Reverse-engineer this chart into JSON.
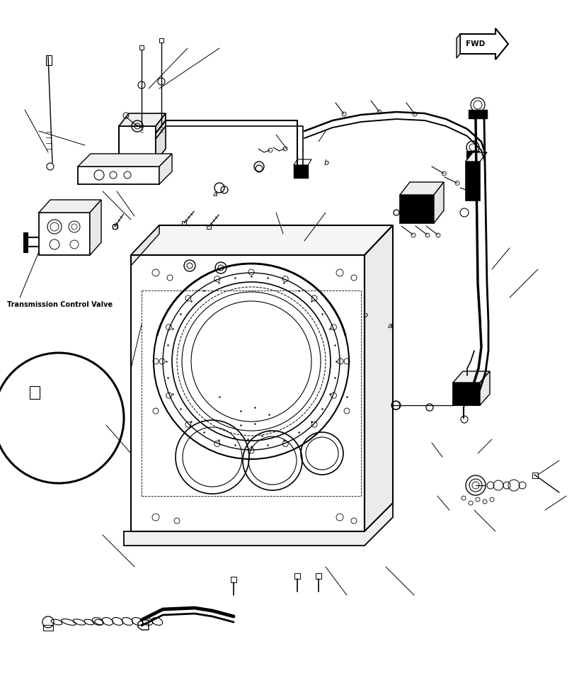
{
  "background_color": "#ffffff",
  "line_color": "#000000",
  "fig_width": 8.18,
  "fig_height": 9.64,
  "dpi": 100,
  "label_tcv": "Transmission Control Valve",
  "label_a": "a",
  "label_b": "b"
}
